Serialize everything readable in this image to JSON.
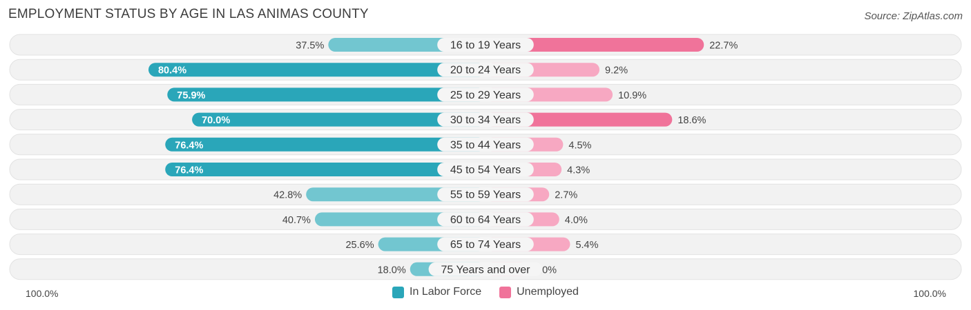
{
  "chart_data": {
    "type": "bar",
    "orientation": "horizontal-diverging",
    "title": "EMPLOYMENT STATUS BY AGE IN LAS ANIMAS COUNTY",
    "source": "Source: ZipAtlas.com",
    "categories": [
      "16 to 19 Years",
      "20 to 24 Years",
      "25 to 29 Years",
      "30 to 34 Years",
      "35 to 44 Years",
      "45 to 54 Years",
      "55 to 59 Years",
      "60 to 64 Years",
      "65 to 74 Years",
      "75 Years and over"
    ],
    "series": [
      {
        "name": "In Labor Force",
        "values": [
          37.5,
          80.4,
          75.9,
          70.0,
          76.4,
          76.4,
          42.8,
          40.7,
          25.6,
          18.0
        ],
        "labels": [
          "37.5%",
          "80.4%",
          "75.9%",
          "70.0%",
          "76.4%",
          "76.4%",
          "42.8%",
          "40.7%",
          "25.6%",
          "18.0%"
        ]
      },
      {
        "name": "Unemployed",
        "values": [
          22.7,
          9.2,
          10.9,
          18.6,
          4.5,
          4.3,
          2.7,
          4.0,
          5.4,
          0.0
        ],
        "labels": [
          "22.7%",
          "9.2%",
          "10.9%",
          "18.6%",
          "4.5%",
          "4.3%",
          "2.7%",
          "4.0%",
          "5.4%",
          "0.0%"
        ]
      }
    ],
    "axis_left_label": "100.0%",
    "axis_right_label": "100.0%",
    "xlim": [
      -100,
      100
    ]
  },
  "colors": {
    "labor_strong": "#2aa6b9",
    "labor_light": "#72c6d0",
    "unemp_strong": "#f0739a",
    "unemp_light": "#f7a8c2",
    "row_bg": "#f2f2f2",
    "row_border": "#e2e2e2"
  }
}
